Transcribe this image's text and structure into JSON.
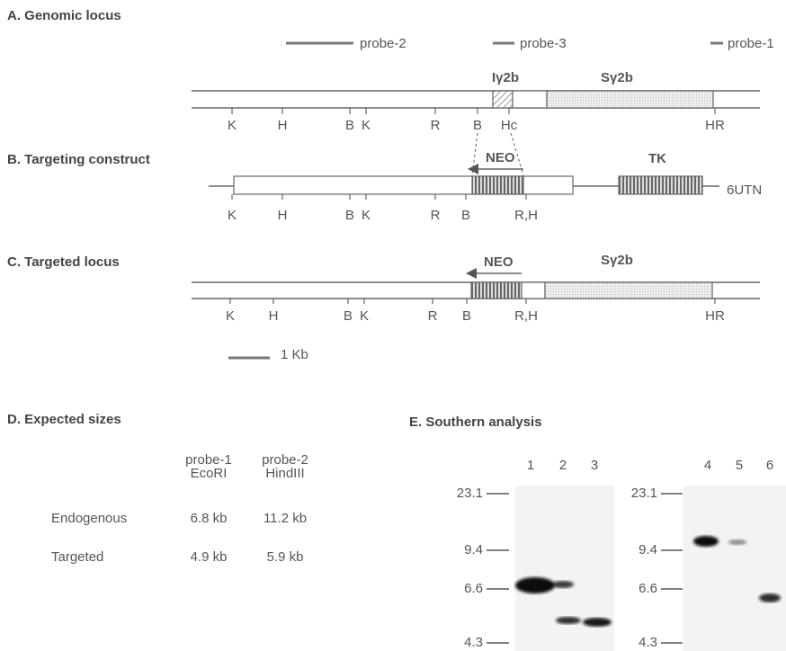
{
  "panel_a": {
    "title": "A. Genomic locus",
    "probes": [
      "probe-2",
      "probe-3",
      "probe-1"
    ],
    "regions": [
      "Iγ2b",
      "Sγ2b"
    ],
    "sites": [
      "K",
      "H",
      "B",
      "K",
      "R",
      "B",
      "Hc",
      "HR"
    ]
  },
  "panel_b": {
    "title": "B. Targeting construct",
    "markers": [
      "NEO",
      "TK"
    ],
    "construct_name": "6UTN",
    "sites": [
      "K",
      "H",
      "B",
      "K",
      "R",
      "B",
      "R,H"
    ]
  },
  "panel_c": {
    "title": "C. Targeted locus",
    "markers": [
      "NEO",
      "Sγ2b"
    ],
    "sites": [
      "K",
      "H",
      "B",
      "K",
      "R",
      "B",
      "R,H",
      "HR"
    ],
    "scale_bar": "1 Kb"
  },
  "panel_d": {
    "title": "D. Expected sizes",
    "table": {
      "header": [
        [
          "probe-1",
          "EcoRI"
        ],
        [
          "probe-2",
          "HindIII"
        ]
      ],
      "rows": [
        [
          "Endogenous",
          "6.8 kb",
          "11.2 kb"
        ],
        [
          "Targeted",
          "4.9 kb",
          "5.9 kb"
        ]
      ]
    }
  },
  "panel_e": {
    "title": "E. Southern analysis",
    "gels": [
      {
        "lanes": [
          "1",
          "2",
          "3"
        ],
        "size_markers": [
          "23.1",
          "9.4",
          "6.6",
          "4.3"
        ]
      },
      {
        "lanes": [
          "4",
          "5",
          "6"
        ],
        "size_markers": [
          "23.1",
          "9.4",
          "6.6",
          "4.3"
        ]
      }
    ]
  }
}
